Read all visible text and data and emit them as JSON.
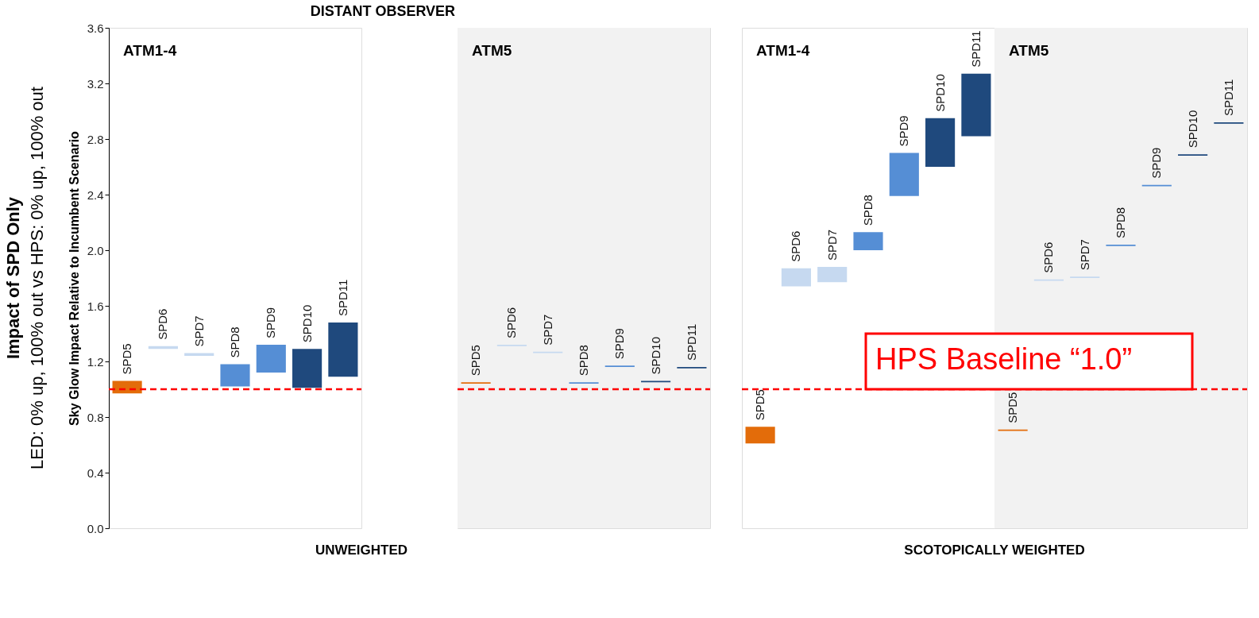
{
  "chart_data": [
    {
      "type": "bar",
      "title": "DISTANT OBSERVER",
      "ylabel": "Sky Glow Impact Relative to Incumbent Scenario",
      "xlabel": "UNWEIGHTED",
      "categories": [
        "SPD5",
        "SPD6",
        "SPD7",
        "SPD8",
        "SPD9",
        "SPD10",
        "SPD11"
      ],
      "base": [
        0.97,
        1.29,
        1.24,
        1.02,
        1.12,
        1.01,
        1.09
      ],
      "values": [
        0.09,
        0.02,
        0.02,
        0.16,
        0.2,
        0.28,
        0.39
      ],
      "colors": [
        "#e36c0a",
        "#c6d9f0",
        "#c6d9f0",
        "#558ed5",
        "#558ed5",
        "#1f497d",
        "#1f497d"
      ],
      "ylim": [
        0,
        3.6
      ],
      "yticks": [
        {
          "value": 0,
          "label": "0.0"
        },
        0.4,
        0.8,
        1.2,
        1.6,
        {
          "value": 2,
          "label": "2.0"
        },
        2.4,
        2.8,
        3.2,
        3.6
      ],
      "tick_labels": "y",
      "legend": false,
      "grid": false,
      "ref_lines": [
        {
          "axis": "y",
          "value": 1.0,
          "color": "#ff0000",
          "line_style": "dashed"
        }
      ],
      "annotations": [
        "ATM1-4",
        "Impact of SPD Only",
        "LED: 0% up, 100% out vs HPS: 0% up, 100% out"
      ]
    },
    {
      "type": "bar",
      "categories": [
        "SPD5",
        "SPD6",
        "SPD7",
        "SPD8",
        "SPD9",
        "SPD10",
        "SPD11"
      ],
      "base": [
        1.04,
        1.31,
        1.26,
        1.04,
        1.16,
        1.05,
        1.15
      ],
      "values": [
        0.01,
        0.01,
        0.01,
        0.01,
        0.01,
        0.01,
        0.01
      ],
      "colors": [
        "#e36c0a",
        "#c6d9f0",
        "#c6d9f0",
        "#558ed5",
        "#558ed5",
        "#1f497d",
        "#1f497d"
      ],
      "ylim": [
        0,
        3.6
      ],
      "tick_labels": false,
      "legend": false,
      "grid": false,
      "ref_lines": [
        {
          "axis": "y",
          "value": 1.0,
          "color": "#ff0000",
          "line_style": "dashed"
        }
      ],
      "bands": [
        {
          "axis": "y",
          "from": 0,
          "to": 3.6,
          "color": "#f2f2f2"
        }
      ],
      "annotations": [
        "ATM5"
      ]
    },
    {
      "type": "bar",
      "xlabel": "SCOTOPICALLY WEIGHTED",
      "categories": [
        "SPD5",
        "SPD6",
        "SPD7",
        "SPD8",
        "SPD9",
        "SPD10",
        "SPD11"
      ],
      "base": [
        0.61,
        1.74,
        1.77,
        2.0,
        2.39,
        2.6,
        2.82
      ],
      "values": [
        0.12,
        0.13,
        0.11,
        0.13,
        0.31,
        0.35,
        0.45
      ],
      "colors": [
        "#e36c0a",
        "#c6d9f0",
        "#c6d9f0",
        "#558ed5",
        "#558ed5",
        "#1f497d",
        "#1f497d"
      ],
      "ylim": [
        0,
        3.6
      ],
      "tick_labels": false,
      "legend": false,
      "grid": false,
      "ref_lines": [
        {
          "axis": "y",
          "value": 1.0,
          "color": "#ff0000",
          "line_style": "dashed"
        }
      ],
      "annotations": [
        "ATM1-4"
      ]
    },
    {
      "type": "bar",
      "categories": [
        "SPD5",
        "SPD6",
        "SPD7",
        "SPD8",
        "SPD9",
        "SPD10",
        "SPD11"
      ],
      "base": [
        0.7,
        1.78,
        1.8,
        2.03,
        2.46,
        2.68,
        2.91
      ],
      "values": [
        0.01,
        0.01,
        0.01,
        0.01,
        0.01,
        0.01,
        0.01
      ],
      "colors": [
        "#e36c0a",
        "#c6d9f0",
        "#c6d9f0",
        "#558ed5",
        "#558ed5",
        "#1f497d",
        "#1f497d"
      ],
      "ylim": [
        0,
        3.6
      ],
      "tick_labels": false,
      "legend": false,
      "grid": false,
      "ref_lines": [
        {
          "axis": "y",
          "value": 1.0,
          "color": "#ff0000",
          "line_style": "dashed"
        }
      ],
      "bands": [
        {
          "axis": "y",
          "from": 0,
          "to": 3.6,
          "color": "#f2f2f2"
        }
      ],
      "annotations": [
        "ATM5",
        {
          "text": "HPS Baseline “1.0”",
          "y": 1.0
        }
      ]
    }
  ]
}
